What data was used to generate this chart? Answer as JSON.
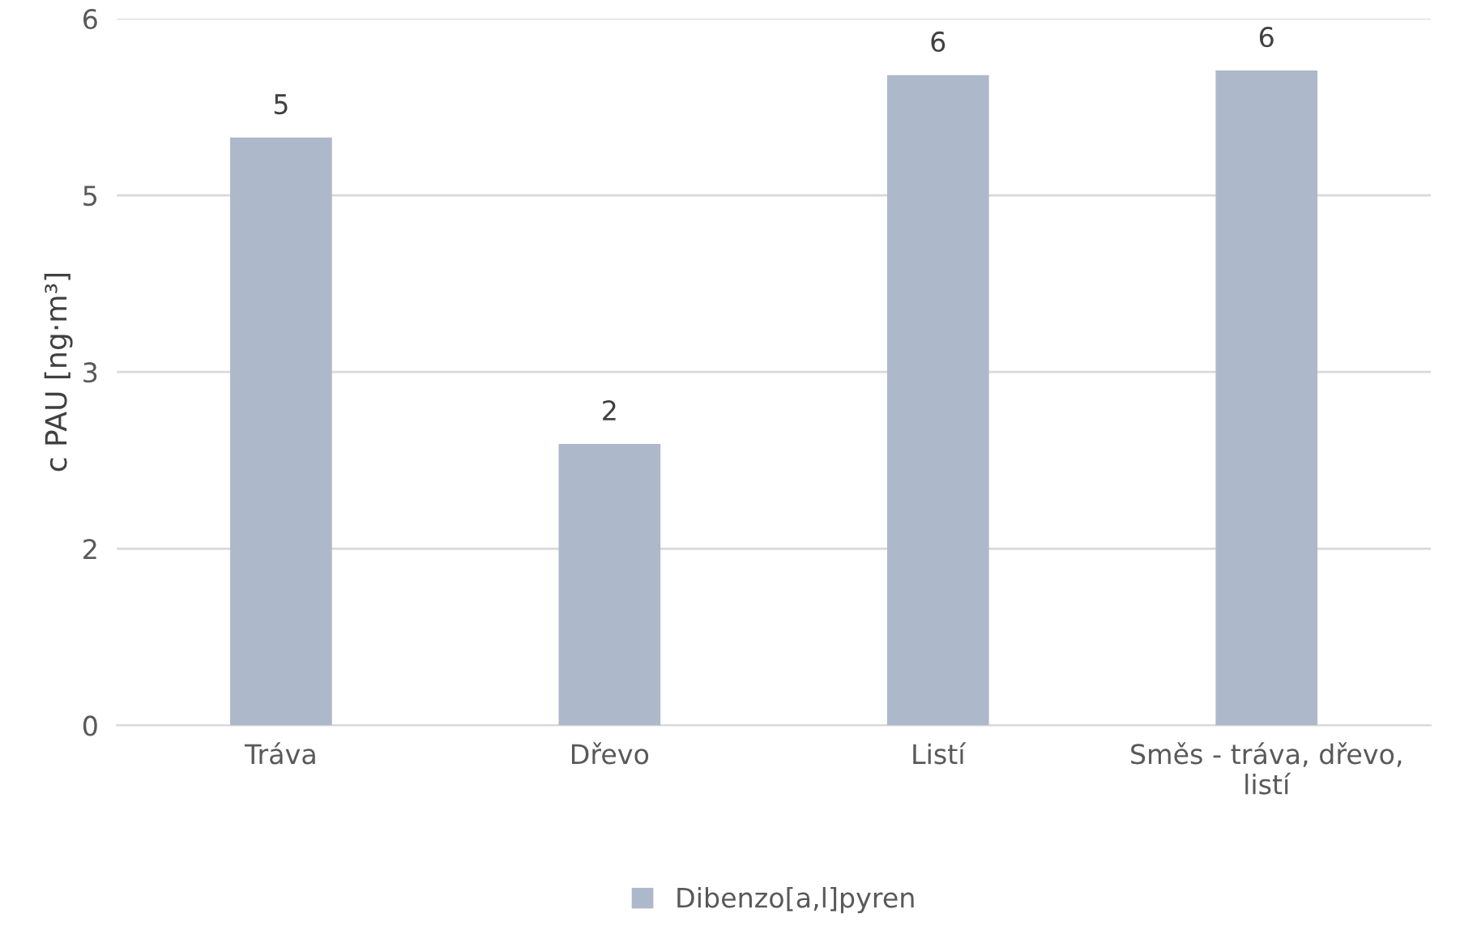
{
  "chart_data": {
    "type": "bar",
    "ylabel": "c PAU [ng·m³]",
    "categories": [
      "Tráva",
      "Dřevo",
      "Listí",
      "Směs - tráva, dřevo,\nlistí"
    ],
    "series": [
      {
        "name": "Dibenzo[a,l]pyren",
        "color": "#adb9ca",
        "values": [
          4.99,
          2.39,
          5.52,
          5.56
        ],
        "value_labels": [
          "5",
          "2",
          "6",
          "6"
        ]
      }
    ],
    "ylim": [
      0,
      6
    ],
    "yticks": [
      0,
      {
        "value": 1.5,
        "label": "2"
      },
      3,
      {
        "value": 4.5,
        "label": "5"
      },
      6
    ],
    "grid": "y",
    "legend": "bottom"
  }
}
